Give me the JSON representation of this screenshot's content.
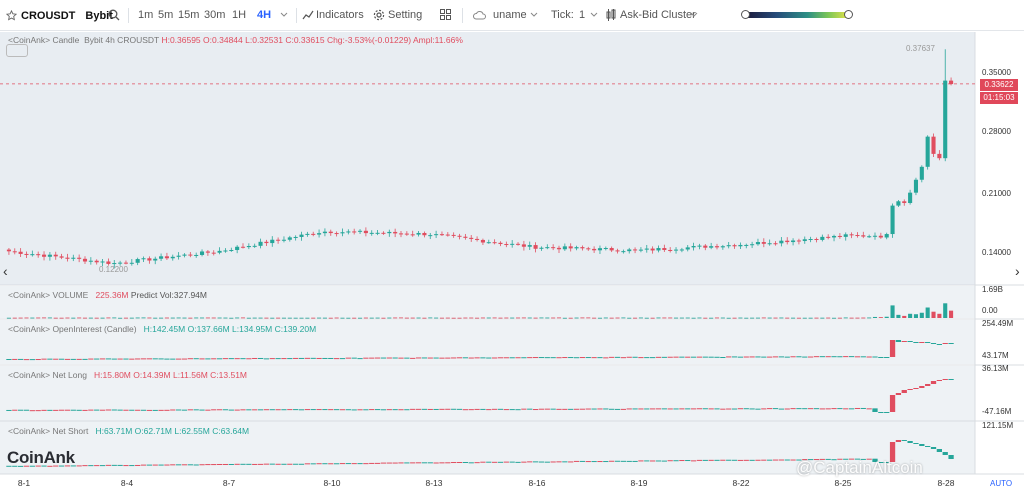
{
  "toolbar": {
    "symbol": "CROUSDT",
    "exchange": "Bybit",
    "intervals": [
      "1m",
      "5m",
      "15m",
      "30m",
      "1H",
      "4H"
    ],
    "active_interval": "4H",
    "indicators_label": "Indicators",
    "setting_label": "Setting",
    "user_label": "uname",
    "tick_label": "Tick:",
    "tick_value": "1",
    "cluster_label": "Ask-Bid Cluster"
  },
  "legend": {
    "candle": {
      "prefix": "<CoinAnk>",
      "name": "Candle",
      "desc": "Bybit 4h CROUSDT",
      "h": "H:0.36595",
      "o": "O:0.34844",
      "l": "L:0.32531",
      "c": "C:0.33615",
      "chg": "Chg:-3.53%(-0.01229)",
      "ampl": "Ampl:11.66%"
    },
    "volume": {
      "prefix": "<CoinAnk>",
      "name": "VOLUME",
      "value": "225.36M",
      "predict": "Predict Vol:327.94M"
    },
    "oi": {
      "prefix": "<CoinAnk>",
      "name": "OpenInterest (Candle)",
      "h": "H:142.45M",
      "o": "O:137.66M",
      "l": "L:134.95M",
      "c": "C:139.20M"
    },
    "net_long": {
      "prefix": "<CoinAnk>",
      "name": "Net Long",
      "h": "H:15.80M",
      "o": "O:14.39M",
      "l": "L:11.56M",
      "c": "C:13.51M"
    },
    "net_short": {
      "prefix": "<CoinAnk>",
      "name": "Net Short",
      "h": "H:63.71M",
      "o": "O:62.71M",
      "l": "L:62.55M",
      "c": "C:63.64M"
    }
  },
  "price_axis": [
    "0.35000",
    "0.28000",
    "0.21000",
    "0.14000"
  ],
  "price_tag": {
    "value": "0.33622",
    "countdown": "01:15:03"
  },
  "high_label": "0.37637",
  "low_label": "0.12200",
  "volume_axis": [
    "1.69B",
    "0.00"
  ],
  "oi_axis": [
    "254.49M",
    "43.17M"
  ],
  "net_long_axis": [
    "36.13M",
    "-47.16M"
  ],
  "net_short_axis": [
    "121.15M"
  ],
  "x_axis": [
    "8-1",
    "8-4",
    "8-7",
    "8-10",
    "8-13",
    "8-16",
    "8-19",
    "8-22",
    "8-25",
    "8-28"
  ],
  "logo_text": "CoinAnk",
  "watermark": "@CaptainAltcoin",
  "auto_label": "AUTO",
  "colors": {
    "up": "#26a69a",
    "down": "#e04d5f",
    "accent": "#2962ff"
  },
  "chart_data": {
    "type": "candlestick",
    "x": [
      "8-1",
      "8-4",
      "8-7",
      "8-10",
      "8-13",
      "8-16",
      "8-19",
      "8-22",
      "8-25",
      "8-28"
    ],
    "close_approx": [
      0.142,
      0.128,
      0.142,
      0.165,
      0.162,
      0.147,
      0.143,
      0.15,
      0.16,
      0.336
    ],
    "last_close": 0.33615,
    "high_marker": 0.37637,
    "low_marker": 0.122,
    "y_ticks": [
      0.35,
      0.28,
      0.21,
      0.14
    ]
  }
}
